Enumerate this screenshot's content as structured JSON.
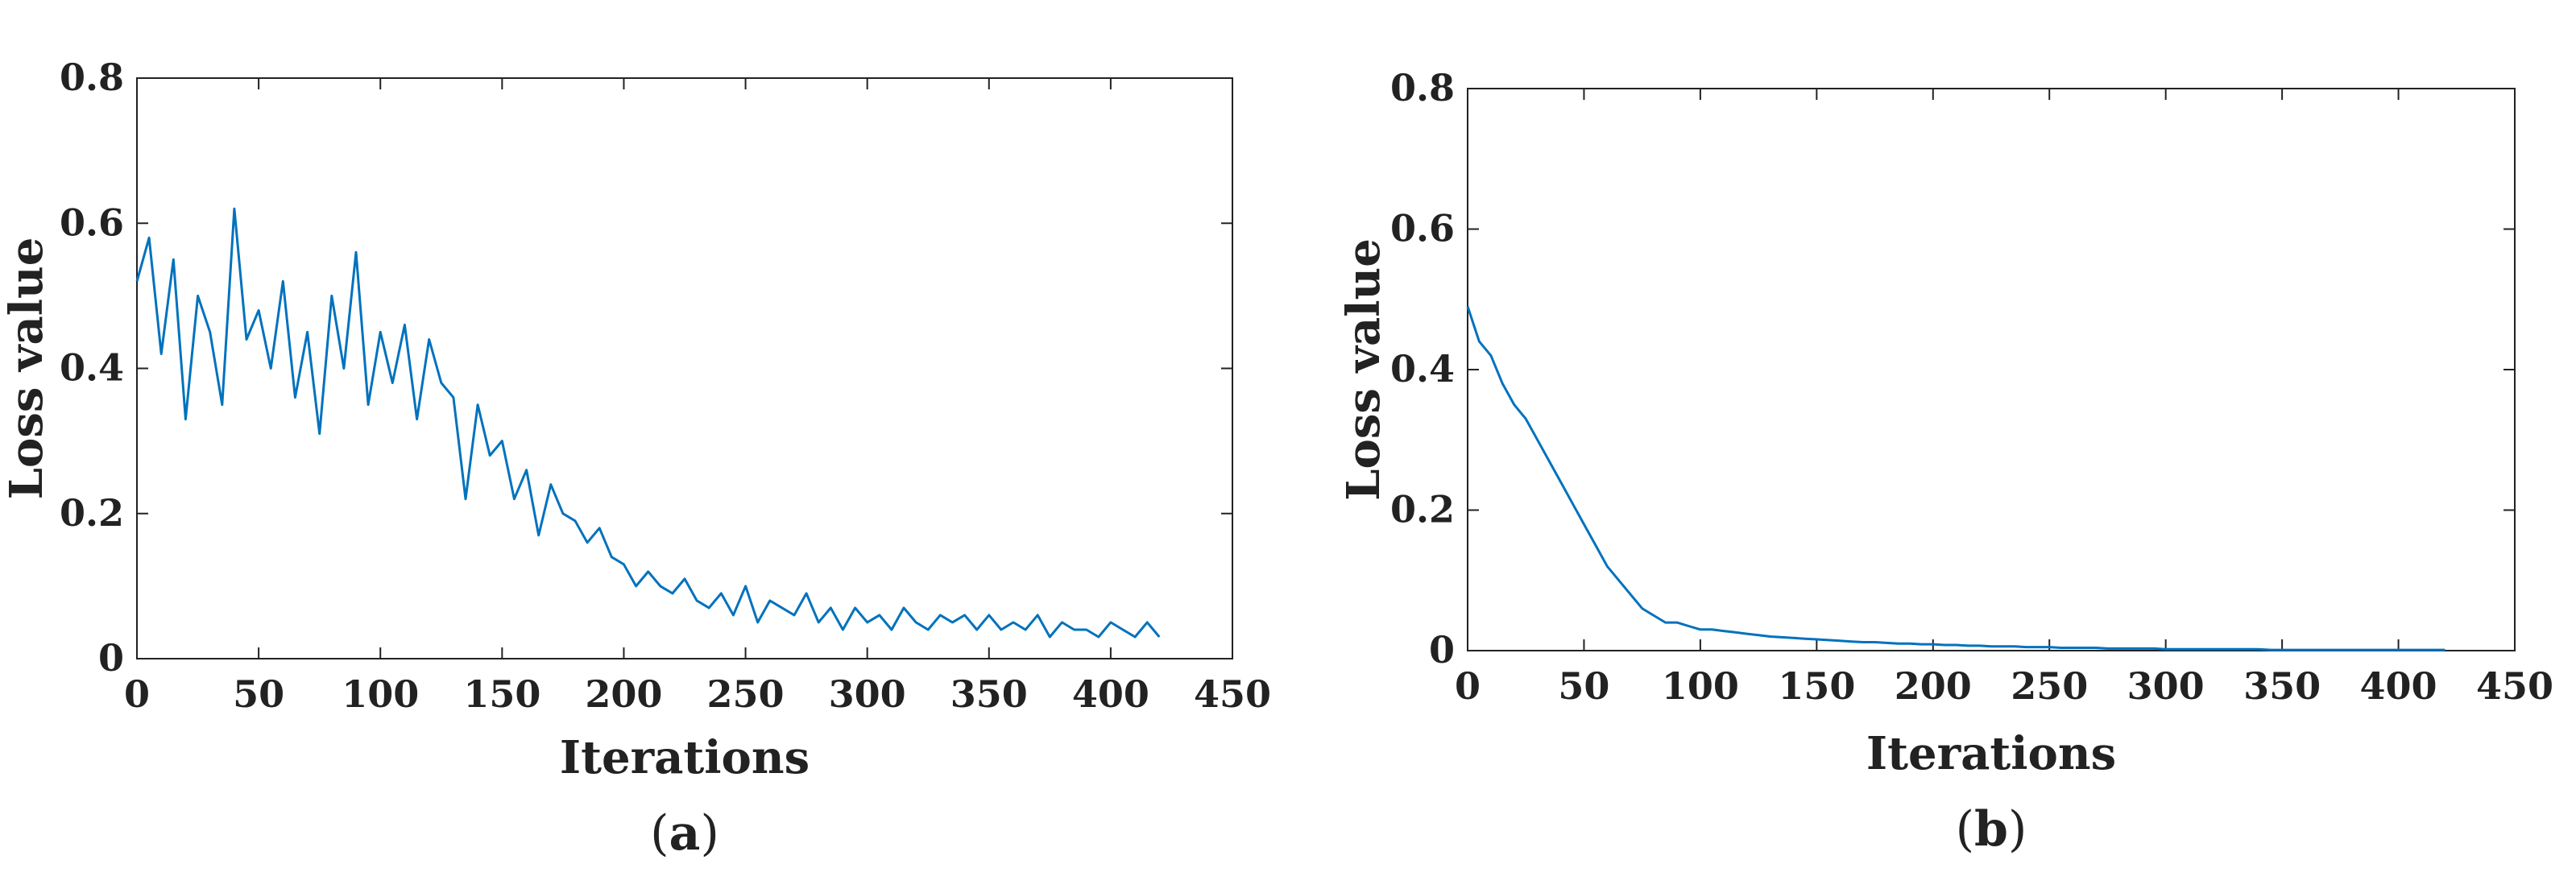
{
  "colors": {
    "line": "#0072BD",
    "axis": "#222222",
    "background": "#ffffff"
  },
  "chart_data": [
    {
      "type": "line",
      "panel_label": "a",
      "title": "",
      "xlabel": "Iterations",
      "ylabel": "Loss value",
      "xlim": [
        0,
        450
      ],
      "ylim": [
        0,
        0.8
      ],
      "xticks": [
        0,
        50,
        100,
        150,
        200,
        250,
        300,
        350,
        400,
        450
      ],
      "yticks": [
        0,
        0.2,
        0.4,
        0.6,
        0.8
      ],
      "xtick_labels": [
        "0",
        "50",
        "100",
        "150",
        "200",
        "250",
        "300",
        "350",
        "400",
        "450"
      ],
      "ytick_labels": [
        "0",
        "0.2",
        "0.4",
        "0.6",
        "0.8"
      ],
      "grid": false,
      "series": [
        {
          "name": "Loss value",
          "x_start": 0,
          "x_step": 5,
          "y": [
            0.52,
            0.58,
            0.42,
            0.55,
            0.33,
            0.5,
            0.45,
            0.35,
            0.62,
            0.44,
            0.48,
            0.4,
            0.52,
            0.36,
            0.45,
            0.31,
            0.5,
            0.4,
            0.56,
            0.35,
            0.45,
            0.38,
            0.46,
            0.33,
            0.44,
            0.38,
            0.36,
            0.22,
            0.35,
            0.28,
            0.3,
            0.22,
            0.26,
            0.17,
            0.24,
            0.2,
            0.19,
            0.16,
            0.18,
            0.14,
            0.13,
            0.1,
            0.12,
            0.1,
            0.09,
            0.11,
            0.08,
            0.07,
            0.09,
            0.06,
            0.1,
            0.05,
            0.08,
            0.07,
            0.06,
            0.09,
            0.05,
            0.07,
            0.04,
            0.07,
            0.05,
            0.06,
            0.04,
            0.07,
            0.05,
            0.04,
            0.06,
            0.05,
            0.06,
            0.04,
            0.06,
            0.04,
            0.05,
            0.04,
            0.06,
            0.03,
            0.05,
            0.04,
            0.04,
            0.03,
            0.05,
            0.04,
            0.03,
            0.05,
            0.03
          ]
        }
      ]
    },
    {
      "type": "line",
      "panel_label": "b",
      "title": "",
      "xlabel": "Iterations",
      "ylabel": "Loss value",
      "xlim": [
        0,
        450
      ],
      "ylim": [
        0,
        0.8
      ],
      "xticks": [
        0,
        50,
        100,
        150,
        200,
        250,
        300,
        350,
        400,
        450
      ],
      "yticks": [
        0,
        0.2,
        0.4,
        0.6,
        0.8
      ],
      "xtick_labels": [
        "0",
        "50",
        "100",
        "150",
        "200",
        "250",
        "300",
        "350",
        "400",
        "450"
      ],
      "ytick_labels": [
        "0",
        "0.2",
        "0.4",
        "0.6",
        "0.8"
      ],
      "grid": false,
      "series": [
        {
          "name": "Loss value",
          "x_start": 0,
          "x_step": 5,
          "y": [
            0.49,
            0.44,
            0.42,
            0.38,
            0.35,
            0.33,
            0.3,
            0.27,
            0.24,
            0.21,
            0.18,
            0.15,
            0.12,
            0.1,
            0.08,
            0.06,
            0.05,
            0.04,
            0.04,
            0.035,
            0.03,
            0.03,
            0.028,
            0.026,
            0.024,
            0.022,
            0.02,
            0.019,
            0.018,
            0.017,
            0.016,
            0.015,
            0.014,
            0.013,
            0.012,
            0.012,
            0.011,
            0.01,
            0.01,
            0.009,
            0.009,
            0.008,
            0.008,
            0.007,
            0.007,
            0.006,
            0.006,
            0.006,
            0.005,
            0.005,
            0.005,
            0.004,
            0.004,
            0.004,
            0.004,
            0.003,
            0.003,
            0.003,
            0.003,
            0.003,
            0.002,
            0.002,
            0.002,
            0.002,
            0.002,
            0.002,
            0.002,
            0.002,
            0.002,
            0.001,
            0.001,
            0.001,
            0.001,
            0.001,
            0.001,
            0.001,
            0.001,
            0.001,
            0.001,
            0.001,
            0.001,
            0.001,
            0.001,
            0.001,
            0.001
          ]
        }
      ]
    }
  ]
}
